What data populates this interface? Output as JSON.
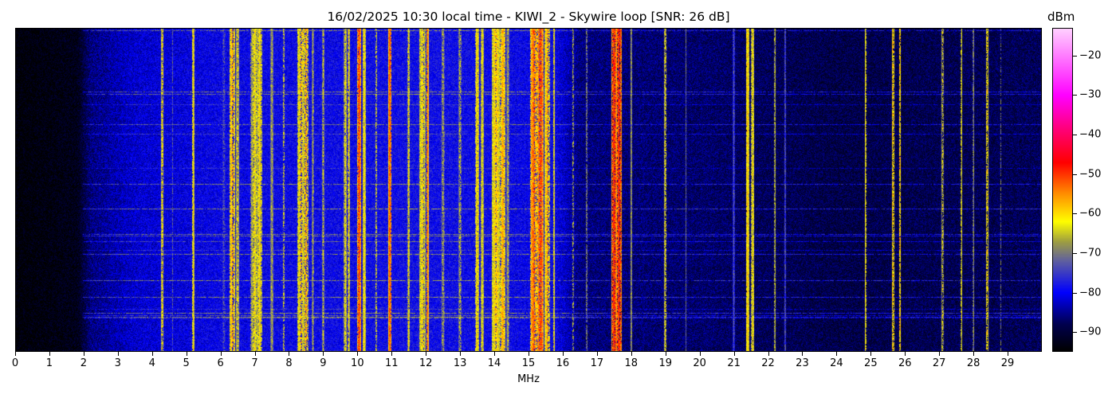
{
  "chart_data": {
    "type": "heatmap",
    "title": "16/02/2025 10:30 local time - KIWI_2 - Skywire loop [SNR: 26 dB]",
    "xlabel": "MHz",
    "ylabel": "",
    "colorbar_label": "dBm",
    "xlim": [
      0,
      30
    ],
    "clim": [
      -95,
      -13
    ],
    "xticks": [
      0,
      1,
      2,
      3,
      4,
      5,
      6,
      7,
      8,
      9,
      10,
      11,
      12,
      13,
      14,
      15,
      16,
      17,
      18,
      19,
      20,
      21,
      22,
      23,
      24,
      25,
      26,
      27,
      28,
      29
    ],
    "colorbar_ticks": [
      -20,
      -30,
      -40,
      -50,
      -60,
      -70,
      -80,
      -90
    ],
    "colormap": [
      [
        -95,
        "#000000"
      ],
      [
        -88,
        "#000050"
      ],
      [
        -80,
        "#0000ff"
      ],
      [
        -72,
        "#6060a0"
      ],
      [
        -67,
        "#a0a040"
      ],
      [
        -62,
        "#ffff00"
      ],
      [
        -55,
        "#ff9000"
      ],
      [
        -47,
        "#ff0000"
      ],
      [
        -38,
        "#ff0080"
      ],
      [
        -30,
        "#ff00ff"
      ],
      [
        -13,
        "#ffd0ff"
      ]
    ],
    "noise_floor": [
      [
        0,
        -95
      ],
      [
        1.8,
        -93
      ],
      [
        2.2,
        -86
      ],
      [
        3.5,
        -82
      ],
      [
        6,
        -80
      ],
      [
        12,
        -79
      ],
      [
        15.8,
        -80
      ],
      [
        16.5,
        -86
      ],
      [
        20,
        -87
      ],
      [
        24,
        -89
      ],
      [
        30,
        -88
      ]
    ],
    "signals": [
      [
        4.3,
        -60,
        0.04
      ],
      [
        4.6,
        -72,
        0.02
      ],
      [
        5.2,
        -60,
        0.04
      ],
      [
        6.1,
        -72,
        0.05
      ],
      [
        6.35,
        -56,
        0.08
      ],
      [
        6.5,
        -62,
        0.05
      ],
      [
        7.0,
        -62,
        0.12
      ],
      [
        7.15,
        -60,
        0.08
      ],
      [
        7.5,
        -66,
        0.05
      ],
      [
        7.85,
        -62,
        0.03
      ],
      [
        8.35,
        -58,
        0.1
      ],
      [
        8.5,
        -56,
        0.06
      ],
      [
        8.7,
        -66,
        0.03
      ],
      [
        9.0,
        -64,
        0.03
      ],
      [
        9.65,
        -62,
        0.05
      ],
      [
        9.75,
        -60,
        0.03
      ],
      [
        10.05,
        -50,
        0.06
      ],
      [
        10.2,
        -60,
        0.05
      ],
      [
        10.55,
        -62,
        0.03
      ],
      [
        10.95,
        -50,
        0.04
      ],
      [
        11.5,
        -60,
        0.03
      ],
      [
        11.9,
        -60,
        0.1
      ],
      [
        12.05,
        -52,
        0.03
      ],
      [
        12.5,
        -66,
        0.05
      ],
      [
        13.0,
        -64,
        0.04
      ],
      [
        13.5,
        -60,
        0.06
      ],
      [
        13.65,
        -62,
        0.05
      ],
      [
        14.05,
        -58,
        0.12
      ],
      [
        14.25,
        -56,
        0.08
      ],
      [
        14.4,
        -66,
        0.05
      ],
      [
        15.15,
        -52,
        0.1
      ],
      [
        15.35,
        -50,
        0.1
      ],
      [
        15.55,
        -56,
        0.08
      ],
      [
        15.75,
        -60,
        0.03
      ],
      [
        16.3,
        -64,
        0.03
      ],
      [
        16.7,
        -66,
        0.02
      ],
      [
        17.5,
        -48,
        0.08
      ],
      [
        17.65,
        -48,
        0.08
      ],
      [
        18.0,
        -66,
        0.03
      ],
      [
        19.0,
        -60,
        0.03
      ],
      [
        19.6,
        -72,
        0.02
      ],
      [
        21.0,
        -72,
        0.03
      ],
      [
        21.4,
        -58,
        0.05
      ],
      [
        21.55,
        -60,
        0.04
      ],
      [
        22.2,
        -62,
        0.02
      ],
      [
        22.5,
        -70,
        0.02
      ],
      [
        24.85,
        -60,
        0.03
      ],
      [
        25.65,
        -56,
        0.03
      ],
      [
        25.85,
        -56,
        0.03
      ],
      [
        27.1,
        -62,
        0.03
      ],
      [
        27.65,
        -60,
        0.02
      ],
      [
        28.0,
        -66,
        0.02
      ],
      [
        28.4,
        -58,
        0.03
      ],
      [
        28.8,
        -70,
        0.02
      ]
    ]
  }
}
